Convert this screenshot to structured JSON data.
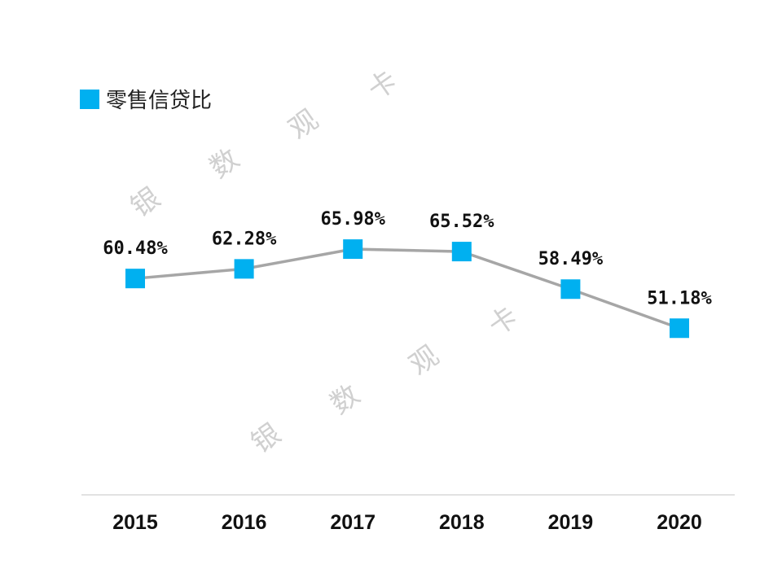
{
  "chart_data": {
    "type": "line",
    "categories": [
      "2015",
      "2016",
      "2017",
      "2018",
      "2019",
      "2020"
    ],
    "series": [
      {
        "name": "零售信贷比",
        "values": [
          60.48,
          62.28,
          65.98,
          65.52,
          58.49,
          51.18
        ],
        "labels": [
          "60.48%",
          "62.28%",
          "65.98%",
          "65.52%",
          "58.49%",
          "51.18%"
        ],
        "marker": "square",
        "marker_color": "#00b0f0",
        "line_color": "#a6a6a6"
      }
    ],
    "ylim": [
      20,
      80
    ],
    "y_axis_visible": false,
    "grid": false,
    "legend": "top-left",
    "axis_color": "#d9d9d9"
  },
  "watermark": [
    "银",
    "数",
    "观",
    "卡"
  ]
}
